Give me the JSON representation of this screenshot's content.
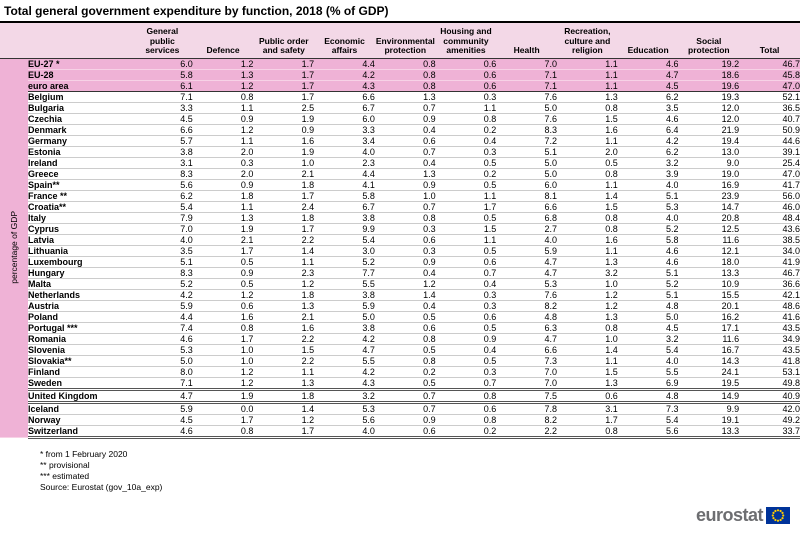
{
  "title": "Total general government expenditure by function, 2018 (% of GDP)",
  "y_axis_label": "percentage of GDP",
  "chart_data": {
    "type": "table",
    "title": "Total general government expenditure by function, 2018 (% of GDP)",
    "unit": "percentage of GDP",
    "columns": [
      "General public services",
      "Defence",
      "Public order and safety",
      "Economic affairs",
      "Environmental protection",
      "Housing and community amenities",
      "Health",
      "Recreation, culture and religion",
      "Education",
      "Social protection",
      "Total"
    ],
    "rows": [
      {
        "name": "EU-27 *",
        "highlight": true,
        "border": "none",
        "values": [
          "6.0",
          "1.2",
          "1.7",
          "4.4",
          "0.8",
          "0.6",
          "7.0",
          "1.1",
          "4.6",
          "19.2",
          "46.7"
        ]
      },
      {
        "name": "EU-28",
        "highlight": true,
        "border": "none",
        "values": [
          "5.8",
          "1.3",
          "1.7",
          "4.2",
          "0.8",
          "0.6",
          "7.1",
          "1.1",
          "4.7",
          "18.6",
          "45.8"
        ]
      },
      {
        "name": "euro area",
        "highlight": true,
        "border": "dark",
        "values": [
          "6.1",
          "1.2",
          "1.7",
          "4.3",
          "0.8",
          "0.6",
          "7.1",
          "1.1",
          "4.5",
          "19.6",
          "47.0"
        ]
      },
      {
        "name": "Belgium",
        "highlight": false,
        "border": "none",
        "values": [
          "7.1",
          "0.8",
          "1.7",
          "6.6",
          "1.3",
          "0.3",
          "7.6",
          "1.3",
          "6.2",
          "19.3",
          "52.1"
        ]
      },
      {
        "name": "Bulgaria",
        "highlight": false,
        "border": "none",
        "values": [
          "3.3",
          "1.1",
          "2.5",
          "6.7",
          "0.7",
          "1.1",
          "5.0",
          "0.8",
          "3.5",
          "12.0",
          "36.5"
        ]
      },
      {
        "name": "Czechia",
        "highlight": false,
        "border": "none",
        "values": [
          "4.5",
          "0.9",
          "1.9",
          "6.0",
          "0.9",
          "0.8",
          "7.6",
          "1.5",
          "4.6",
          "12.0",
          "40.7"
        ]
      },
      {
        "name": "Denmark",
        "highlight": false,
        "border": "none",
        "values": [
          "6.6",
          "1.2",
          "0.9",
          "3.3",
          "0.4",
          "0.2",
          "8.3",
          "1.6",
          "6.4",
          "21.9",
          "50.9"
        ]
      },
      {
        "name": "Germany",
        "highlight": false,
        "border": "none",
        "values": [
          "5.7",
          "1.1",
          "1.6",
          "3.4",
          "0.6",
          "0.4",
          "7.2",
          "1.1",
          "4.2",
          "19.4",
          "44.6"
        ]
      },
      {
        "name": "Estonia",
        "highlight": false,
        "border": "none",
        "values": [
          "3.8",
          "2.0",
          "1.9",
          "4.0",
          "0.7",
          "0.3",
          "5.1",
          "2.0",
          "6.2",
          "13.0",
          "39.1"
        ]
      },
      {
        "name": "Ireland",
        "highlight": false,
        "border": "none",
        "values": [
          "3.1",
          "0.3",
          "1.0",
          "2.3",
          "0.4",
          "0.5",
          "5.0",
          "0.5",
          "3.2",
          "9.0",
          "25.4"
        ]
      },
      {
        "name": "Greece",
        "highlight": false,
        "border": "none",
        "values": [
          "8.3",
          "2.0",
          "2.1",
          "4.4",
          "1.3",
          "0.2",
          "5.0",
          "0.8",
          "3.9",
          "19.0",
          "47.0"
        ]
      },
      {
        "name": "Spain**",
        "highlight": false,
        "border": "none",
        "values": [
          "5.6",
          "0.9",
          "1.8",
          "4.1",
          "0.9",
          "0.5",
          "6.0",
          "1.1",
          "4.0",
          "16.9",
          "41.7"
        ]
      },
      {
        "name": "France **",
        "highlight": false,
        "border": "none",
        "values": [
          "6.2",
          "1.8",
          "1.7",
          "5.8",
          "1.0",
          "1.1",
          "8.1",
          "1.4",
          "5.1",
          "23.9",
          "56.0"
        ]
      },
      {
        "name": "Croatia**",
        "highlight": false,
        "border": "none",
        "values": [
          "5.4",
          "1.1",
          "2.4",
          "6.7",
          "0.7",
          "1.7",
          "6.6",
          "1.5",
          "5.3",
          "14.7",
          "46.0"
        ]
      },
      {
        "name": "Italy",
        "highlight": false,
        "border": "none",
        "values": [
          "7.9",
          "1.3",
          "1.8",
          "3.8",
          "0.8",
          "0.5",
          "6.8",
          "0.8",
          "4.0",
          "20.8",
          "48.4"
        ]
      },
      {
        "name": "Cyprus",
        "highlight": false,
        "border": "none",
        "values": [
          "7.0",
          "1.9",
          "1.7",
          "9.9",
          "0.3",
          "1.5",
          "2.7",
          "0.8",
          "5.2",
          "12.5",
          "43.6"
        ]
      },
      {
        "name": "Latvia",
        "highlight": false,
        "border": "none",
        "values": [
          "4.0",
          "2.1",
          "2.2",
          "5.4",
          "0.6",
          "1.1",
          "4.0",
          "1.6",
          "5.8",
          "11.6",
          "38.5"
        ]
      },
      {
        "name": "Lithuania",
        "highlight": false,
        "border": "none",
        "values": [
          "3.5",
          "1.7",
          "1.4",
          "3.0",
          "0.3",
          "0.5",
          "5.9",
          "1.1",
          "4.6",
          "12.1",
          "34.0"
        ]
      },
      {
        "name": "Luxembourg",
        "highlight": false,
        "border": "none",
        "values": [
          "5.1",
          "0.5",
          "1.1",
          "5.2",
          "0.9",
          "0.6",
          "4.7",
          "1.3",
          "4.6",
          "18.0",
          "41.9"
        ]
      },
      {
        "name": "Hungary",
        "highlight": false,
        "border": "none",
        "values": [
          "8.3",
          "0.9",
          "2.3",
          "7.7",
          "0.4",
          "0.7",
          "4.7",
          "3.2",
          "5.1",
          "13.3",
          "46.7"
        ]
      },
      {
        "name": "Malta",
        "highlight": false,
        "border": "none",
        "values": [
          "5.2",
          "0.5",
          "1.2",
          "5.5",
          "1.2",
          "0.4",
          "5.3",
          "1.0",
          "5.2",
          "10.9",
          "36.6"
        ]
      },
      {
        "name": "Netherlands",
        "highlight": false,
        "border": "none",
        "values": [
          "4.2",
          "1.2",
          "1.8",
          "3.8",
          "1.4",
          "0.3",
          "7.6",
          "1.2",
          "5.1",
          "15.5",
          "42.1"
        ]
      },
      {
        "name": "Austria",
        "highlight": false,
        "border": "none",
        "values": [
          "5.9",
          "0.6",
          "1.3",
          "5.9",
          "0.4",
          "0.3",
          "8.2",
          "1.2",
          "4.8",
          "20.1",
          "48.6"
        ]
      },
      {
        "name": "Poland",
        "highlight": false,
        "border": "none",
        "values": [
          "4.4",
          "1.6",
          "2.1",
          "5.0",
          "0.5",
          "0.6",
          "4.8",
          "1.3",
          "5.0",
          "16.2",
          "41.6"
        ]
      },
      {
        "name": "Portugal ***",
        "highlight": false,
        "border": "none",
        "values": [
          "7.4",
          "0.8",
          "1.6",
          "3.8",
          "0.6",
          "0.5",
          "6.3",
          "0.8",
          "4.5",
          "17.1",
          "43.5"
        ]
      },
      {
        "name": "Romania",
        "highlight": false,
        "border": "none",
        "values": [
          "4.6",
          "1.7",
          "2.2",
          "4.2",
          "0.8",
          "0.9",
          "4.7",
          "1.0",
          "3.2",
          "11.6",
          "34.9"
        ]
      },
      {
        "name": "Slovenia",
        "highlight": false,
        "border": "none",
        "values": [
          "5.3",
          "1.0",
          "1.5",
          "4.7",
          "0.5",
          "0.4",
          "6.6",
          "1.4",
          "5.4",
          "16.7",
          "43.5"
        ]
      },
      {
        "name": "Slovakia**",
        "highlight": false,
        "border": "none",
        "values": [
          "5.0",
          "1.0",
          "2.2",
          "5.5",
          "0.8",
          "0.5",
          "7.3",
          "1.1",
          "4.0",
          "14.3",
          "41.8"
        ]
      },
      {
        "name": "Finland",
        "highlight": false,
        "border": "none",
        "values": [
          "8.0",
          "1.2",
          "1.1",
          "4.2",
          "0.2",
          "0.3",
          "7.0",
          "1.5",
          "5.5",
          "24.1",
          "53.1"
        ]
      },
      {
        "name": "Sweden",
        "highlight": false,
        "border": "double",
        "values": [
          "7.1",
          "1.2",
          "1.3",
          "4.3",
          "0.5",
          "0.7",
          "7.0",
          "1.3",
          "6.9",
          "19.5",
          "49.8"
        ]
      },
      {
        "name": "United Kingdom",
        "highlight": false,
        "border": "double",
        "values": [
          "4.7",
          "1.9",
          "1.8",
          "3.2",
          "0.7",
          "0.8",
          "7.5",
          "0.6",
          "4.8",
          "14.9",
          "40.9"
        ]
      },
      {
        "name": "Iceland",
        "highlight": false,
        "border": "none",
        "values": [
          "5.9",
          "0.0",
          "1.4",
          "5.3",
          "0.7",
          "0.6",
          "7.8",
          "3.1",
          "7.3",
          "9.9",
          "42.0"
        ]
      },
      {
        "name": "Norway",
        "highlight": false,
        "border": "none",
        "values": [
          "4.5",
          "1.7",
          "1.2",
          "5.6",
          "0.9",
          "0.8",
          "8.2",
          "1.7",
          "5.4",
          "19.1",
          "49.2"
        ]
      },
      {
        "name": "Switzerland",
        "highlight": false,
        "border": "double",
        "values": [
          "4.6",
          "0.8",
          "1.7",
          "4.0",
          "0.6",
          "0.2",
          "2.2",
          "0.8",
          "5.6",
          "13.3",
          "33.7"
        ]
      }
    ]
  },
  "footnotes": [
    "* from 1 February 2020",
    "** provisional",
    "*** estimated",
    "Source: Eurostat (gov_10a_exp)"
  ],
  "logo_text": "eurostat",
  "colors": {
    "header_bg": "#f3d8e7",
    "highlight_bg": "#efb2d6",
    "eu_flag_blue": "#003399",
    "star_yellow": "#ffcc00",
    "logo_gray": "#6d6e71"
  }
}
